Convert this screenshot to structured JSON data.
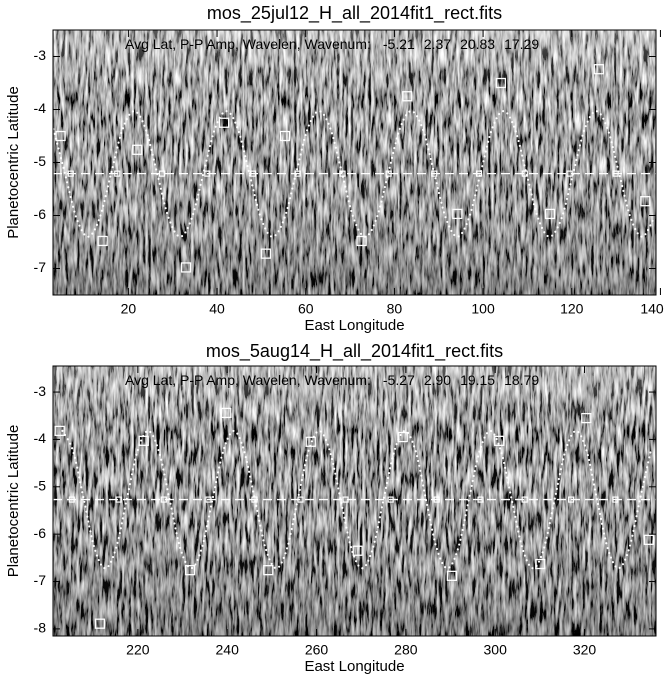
{
  "chart_data": [
    {
      "type": "scatter",
      "title": "mos_25jul12_H_all_2014fit1_rect.fits",
      "annotation": "Avg Lat, P-P Amp, Wavelen, Wavenum:",
      "fit": {
        "values": [
          -5.21,
          2.37,
          20.83,
          17.29
        ],
        "value_labels": [
          "-5.21",
          "2.37",
          "20.83",
          "17.29"
        ]
      },
      "xlabel": "East Longitude",
      "ylabel": "Planetocentric Latitude",
      "xlim": [
        3,
        139
      ],
      "ylim": [
        -7.5,
        -2.5
      ],
      "xticks": [
        20,
        40,
        60,
        80,
        100,
        120,
        140
      ],
      "yticks": [
        -7,
        -6,
        -5,
        -4,
        -3
      ],
      "color": "#ffffff",
      "points": {
        "x": [
          4.7,
          22.0,
          14.2,
          33.0,
          41.6,
          51.0,
          55.3,
          72.6,
          82.9,
          94.2,
          104.0,
          115.1,
          126.1,
          136.6
        ],
        "y": [
          -4.5,
          -4.76,
          -6.48,
          -6.98,
          -4.25,
          -6.72,
          -4.5,
          -6.48,
          -3.75,
          -5.97,
          -3.5,
          -5.97,
          -3.24,
          -5.73
        ]
      },
      "mean_x": [
        7.0,
        17.5,
        27.6,
        37.8,
        48.1,
        58.2,
        68.3,
        78.7,
        89.0,
        99.1,
        109.4,
        119.5,
        129.9
      ],
      "fit_curve": {
        "x": [
          3.1,
          5.7,
          8.3,
          10.9,
          13.5,
          16.1,
          18.7,
          21.3,
          23.9,
          26.5,
          29.1,
          31.7,
          34.3,
          36.9,
          39.5,
          42.1,
          44.7,
          47.3,
          49.9,
          52.5,
          55.2,
          57.8,
          60.4,
          63.0,
          65.6,
          68.2,
          70.8,
          73.4,
          76.0,
          78.6,
          81.2,
          83.8,
          86.4,
          89.0,
          91.6,
          94.2,
          96.8,
          99.4,
          102.0,
          104.6,
          107.2,
          109.8,
          112.4,
          115.0,
          117.7,
          120.3,
          122.9,
          125.5,
          128.1,
          130.7,
          133.3,
          135.9,
          138.5
        ],
        "y": [
          -4.37,
          -5.21,
          -6.05,
          -6.4,
          -6.05,
          -5.21,
          -4.37,
          -4.03,
          -4.37,
          -5.21,
          -6.05,
          -6.4,
          -6.05,
          -5.21,
          -4.37,
          -4.03,
          -4.37,
          -5.21,
          -6.05,
          -6.4,
          -6.05,
          -5.21,
          -4.37,
          -4.03,
          -4.37,
          -5.21,
          -6.05,
          -6.4,
          -6.05,
          -5.21,
          -4.37,
          -4.03,
          -4.37,
          -5.21,
          -6.05,
          -6.4,
          -6.05,
          -5.21,
          -4.37,
          -4.03,
          -4.37,
          -5.21,
          -6.05,
          -6.4,
          -6.05,
          -5.21,
          -4.37,
          -4.03,
          -4.37,
          -5.21,
          -6.05,
          -6.4,
          -6.05
        ]
      }
    },
    {
      "type": "scatter",
      "title": "mos_5aug14_H_all_2014fit1_rect.fits",
      "annotation": "Avg Lat, P-P Amp, Wavelen, Wavenum:",
      "fit": {
        "values": [
          -5.27,
          2.9,
          19.15,
          18.79
        ],
        "value_labels": [
          "-5.27",
          "2.90",
          "19.15",
          "18.79"
        ]
      },
      "xlabel": "East Longitude",
      "ylabel": "Planetocentric Latitude",
      "xlim": [
        201,
        336
      ],
      "ylim": [
        -8.15,
        -2.45
      ],
      "xticks": [
        220,
        240,
        260,
        280,
        300,
        320
      ],
      "yticks": [
        -8,
        -7,
        -6,
        -5,
        -4,
        -3
      ],
      "color": "#ffffff",
      "points": {
        "x": [
          202.5,
          221.3,
          211.5,
          231.7,
          239.8,
          249.2,
          258.7,
          269.2,
          279.3,
          290.3,
          300.9,
          310.1,
          320.4,
          334.4
        ],
        "y": [
          -3.82,
          -4.03,
          -7.89,
          -6.76,
          -3.44,
          -6.76,
          -4.05,
          -6.35,
          -3.95,
          -6.88,
          -4.03,
          -6.63,
          -3.55,
          -6.12
        ]
      },
      "mean_x": [
        205.2,
        215.7,
        225.8,
        235.8,
        246.1,
        256.4,
        266.5,
        276.6,
        286.9,
        296.7,
        306.6,
        317.0,
        326.9
      ],
      "fit_curve": {
        "x": [
          203.1,
          205.5,
          207.9,
          210.3,
          212.7,
          215.1,
          217.5,
          219.9,
          222.3,
          224.7,
          227.1,
          229.5,
          231.9,
          234.3,
          236.7,
          239.1,
          241.5,
          243.8,
          246.2,
          248.6,
          251.0,
          253.4,
          255.8,
          258.2,
          260.6,
          263.0,
          265.4,
          267.8,
          270.2,
          272.6,
          275.0,
          277.4,
          279.8,
          282.2,
          284.5,
          286.9,
          289.3,
          291.7,
          294.1,
          296.5,
          298.9,
          301.3,
          303.7,
          306.1,
          308.5,
          310.9,
          313.3,
          315.7,
          318.1,
          320.5,
          322.8,
          325.2,
          327.6,
          330.0,
          332.4,
          334.8
        ],
        "y": [
          -3.82,
          -4.25,
          -5.27,
          -6.3,
          -6.72,
          -6.3,
          -5.27,
          -4.25,
          -3.82,
          -4.25,
          -5.27,
          -6.3,
          -6.72,
          -6.3,
          -5.27,
          -4.25,
          -3.82,
          -4.25,
          -5.27,
          -6.3,
          -6.72,
          -6.3,
          -5.27,
          -4.25,
          -3.82,
          -4.25,
          -5.27,
          -6.3,
          -6.72,
          -6.3,
          -5.27,
          -4.25,
          -3.82,
          -4.25,
          -5.27,
          -6.3,
          -6.72,
          -6.3,
          -5.27,
          -4.25,
          -3.82,
          -4.25,
          -5.27,
          -6.3,
          -6.72,
          -6.3,
          -5.27,
          -4.25,
          -3.82,
          -4.25,
          -5.27,
          -6.3,
          -6.72,
          -6.3,
          -5.27,
          -4.25
        ]
      }
    }
  ]
}
